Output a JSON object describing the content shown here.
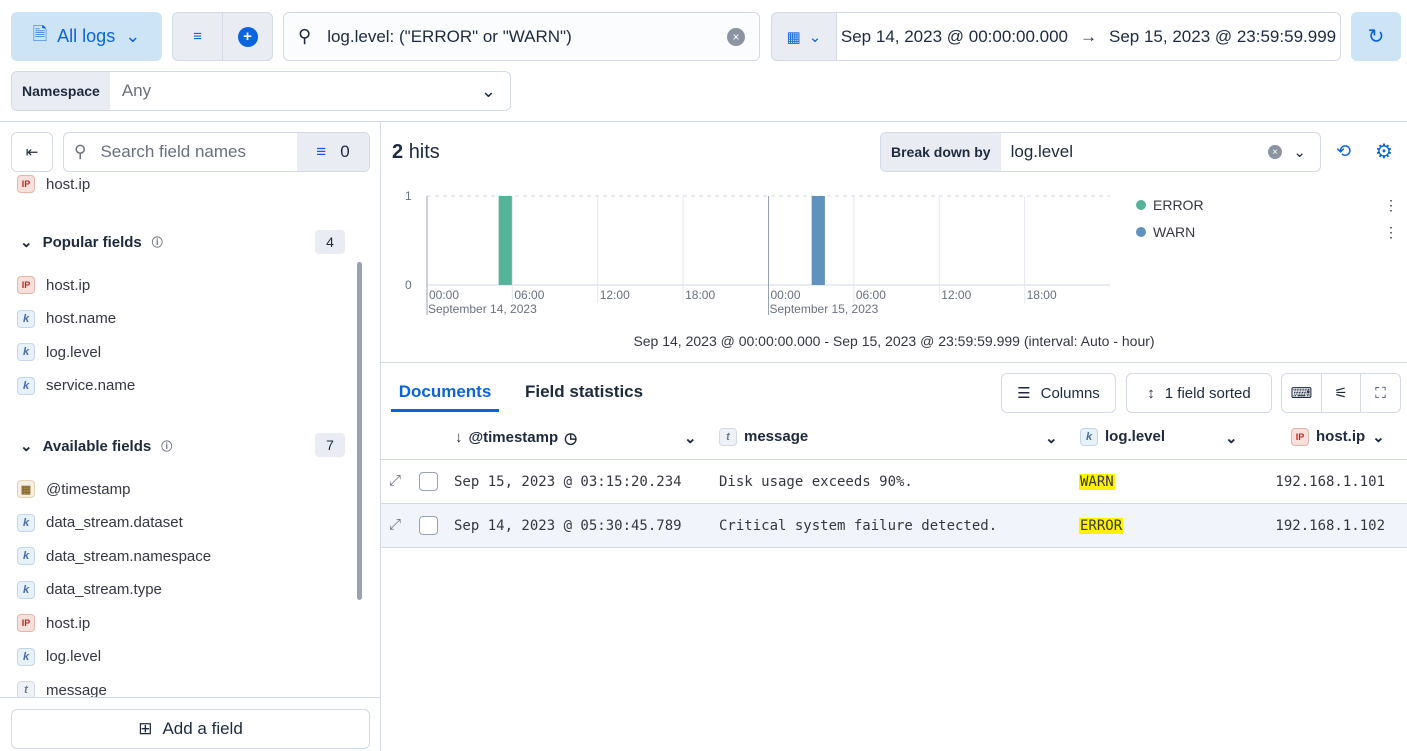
{
  "topbar": {
    "data_view": "All logs",
    "query": "log.level: (\"ERROR\" or \"WARN\")",
    "date_start": "Sep 14, 2023 @ 00:00:00.000",
    "date_end": "Sep 15, 2023 @ 23:59:59.999",
    "namespace_label": "Namespace",
    "namespace_value": "Any"
  },
  "sidebar": {
    "search_placeholder": "Search field names",
    "filter_count": "0",
    "top_partial_field": "host.ip",
    "popular": {
      "label": "Popular fields",
      "count": "4",
      "items": [
        {
          "name": "host.ip",
          "type": "ip"
        },
        {
          "name": "host.name",
          "type": "k"
        },
        {
          "name": "log.level",
          "type": "k"
        },
        {
          "name": "service.name",
          "type": "k"
        }
      ]
    },
    "available": {
      "label": "Available fields",
      "count": "7",
      "items": [
        {
          "name": "@timestamp",
          "type": "date"
        },
        {
          "name": "data_stream.dataset",
          "type": "k"
        },
        {
          "name": "data_stream.namespace",
          "type": "k"
        },
        {
          "name": "data_stream.type",
          "type": "k"
        },
        {
          "name": "host.ip",
          "type": "ip"
        },
        {
          "name": "log.level",
          "type": "k"
        },
        {
          "name": "message",
          "type": "t"
        }
      ]
    },
    "add_field": "Add a field"
  },
  "main": {
    "hits_count": "2",
    "hits_label": "hits",
    "breakdown_label": "Break down by",
    "breakdown_value": "log.level",
    "time_range_caption": "Sep 14, 2023 @ 00:00:00.000 - Sep 15, 2023 @ 23:59:59.999 (interval: Auto - hour)",
    "tabs": [
      "Documents",
      "Field statistics"
    ],
    "columns_btn": "Columns",
    "sorted_btn": "1 field sorted",
    "headers": [
      "@timestamp",
      "message",
      "log.level",
      "host.ip"
    ],
    "rows": [
      {
        "timestamp": "Sep 15, 2023 @ 03:15:20.234",
        "message": "Disk usage exceeds 90%.",
        "level": "WARN",
        "ip": "192.168.1.101"
      },
      {
        "timestamp": "Sep 14, 2023 @ 05:30:45.789",
        "message": "Critical system failure detected.",
        "level": "ERROR",
        "ip": "192.168.1.102"
      }
    ]
  },
  "chart_data": {
    "type": "bar",
    "x_ticks": [
      "00:00",
      "06:00",
      "12:00",
      "18:00",
      "00:00",
      "06:00",
      "12:00",
      "18:00"
    ],
    "x_date_labels": [
      "September 14, 2023",
      "September 15, 2023"
    ],
    "y_ticks": [
      "0",
      "1"
    ],
    "ylim": [
      0,
      1
    ],
    "interval": "hour",
    "legend_position": "right",
    "series": [
      {
        "name": "ERROR",
        "color": "#54b399",
        "points": [
          {
            "x": "2023-09-14 05:00",
            "y": 1
          }
        ]
      },
      {
        "name": "WARN",
        "color": "#6092c0",
        "points": [
          {
            "x": "2023-09-15 03:00",
            "y": 1
          }
        ]
      }
    ]
  }
}
